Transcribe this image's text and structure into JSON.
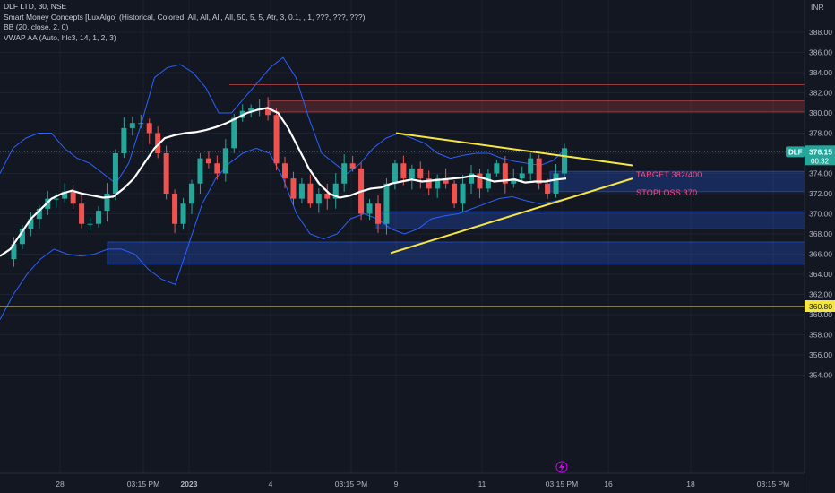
{
  "header": {
    "symbol": "DLF LTD, 30, NSE",
    "indicator_1": "Smart Money Concepts [LuxAlgo] (Historical, Colored, All, All, All, All, 50, 5, 5, Atr, 3, 0.1, , 1, ???, ???, ???)",
    "indicator_2": "BB (20, close, 2, 0)",
    "indicator_3": "VWAP AA (Auto, hlc3, 14, 1, 2, 3)"
  },
  "colors": {
    "background": "#131722",
    "up": "#26a69a",
    "down": "#ef5350",
    "bb": "#2962ff",
    "vwap": "#ffffff",
    "trend": "#f5e642",
    "note": "#ff4c85"
  },
  "chart_data": {
    "type": "candlestick",
    "currency": "INR",
    "y_ticks": [
      354,
      356,
      358,
      360,
      362,
      364,
      366,
      368,
      370,
      372,
      374,
      376,
      378,
      380,
      382,
      384,
      386,
      388
    ],
    "ylim": [
      353,
      390
    ],
    "x_ticks": [
      "28",
      "03:15 PM",
      "2023",
      "4",
      "03:15 PM",
      "9",
      "11",
      "03:15 PM",
      "16",
      "18",
      "03:15 PM"
    ],
    "last_price": "376.15",
    "countdown": "00:32",
    "ticker_badge": "DLF",
    "horizontal_line_label": "360.80",
    "horizontal_line": 360.8,
    "annotations": {
      "target": "TARGET 382/400",
      "stoploss": "STOPLOSS 370"
    },
    "supply_zone": [
      380.1,
      381.2
    ],
    "demand_zones": [
      [
        372.2,
        374.2
      ],
      [
        368.5,
        370.2
      ],
      [
        365,
        367.2
      ]
    ],
    "strong_high": 382.8,
    "triangle_upper": [
      [
        9,
        378
      ],
      [
        17,
        374.8
      ]
    ],
    "triangle_lower": [
      [
        9,
        366.1
      ],
      [
        17,
        373.5
      ]
    ],
    "close_path": [
      365.5,
      367,
      368.5,
      369.5,
      370.5,
      371.5,
      371.5,
      372.2,
      371,
      369,
      369,
      370.3,
      372,
      376,
      378.5,
      379,
      379,
      378,
      376,
      372,
      369,
      371,
      373,
      375.5,
      375,
      374,
      376.5,
      379.5,
      380.2,
      380.5,
      380.5,
      379.8,
      375,
      373.5,
      371.5,
      373,
      371,
      372,
      371.5,
      373,
      375,
      374.5,
      370,
      371,
      369,
      373,
      375,
      373.5,
      374.5,
      373.5,
      372.5,
      373.5,
      373,
      371,
      373,
      374,
      372.5,
      374,
      375,
      373,
      373.5,
      374,
      375.5,
      373,
      372,
      374,
      376.5
    ],
    "vwap_path": [
      365.8,
      366.5,
      368,
      369.5,
      370.5,
      371.5,
      372,
      372.3,
      372,
      371.8,
      371.6,
      371.7,
      372.5,
      373.5,
      375,
      376.5,
      377.5,
      377.8,
      378,
      378.1,
      378.3,
      378.6,
      379,
      379.5,
      380,
      380.3,
      380.5,
      380,
      378.5,
      376.5,
      374.5,
      373,
      372,
      371.6,
      371.8,
      372.2,
      372.5,
      372.6,
      373,
      373.2,
      373.4,
      373.2,
      373.3,
      373.4,
      373.5,
      373.6,
      373.8,
      373.5,
      373.2,
      373.3,
      373.4,
      373.1,
      373.2,
      373.2,
      373.4,
      373.5
    ],
    "bb_upper_path": [
      374,
      376.5,
      377.5,
      378,
      378,
      376.5,
      375.5,
      375,
      374,
      373,
      375,
      379,
      383.5,
      384.5,
      384.8,
      384,
      382.5,
      380,
      380,
      381.5,
      383,
      384.5,
      385.5,
      383.5,
      379.5,
      376,
      375,
      374,
      375,
      376.5,
      377.5,
      378,
      377.5,
      377,
      376,
      375.5,
      375.8,
      376,
      376,
      375.5,
      375.2,
      375,
      374.8,
      375.3,
      376.5
    ],
    "bb_lower_path": [
      359.5,
      362,
      364,
      365.5,
      366.5,
      366,
      365.8,
      366,
      366.5,
      366.5,
      366,
      364.5,
      363.5,
      363,
      367,
      371,
      373.5,
      375,
      376,
      376.5,
      376,
      373.5,
      370,
      368,
      367.5,
      368,
      369.5,
      370,
      369.5,
      368.5,
      368,
      368.5,
      369.5,
      369.8,
      370,
      370.5,
      371,
      371.5,
      371.7,
      371.3,
      371,
      371.2,
      371.5
    ]
  }
}
